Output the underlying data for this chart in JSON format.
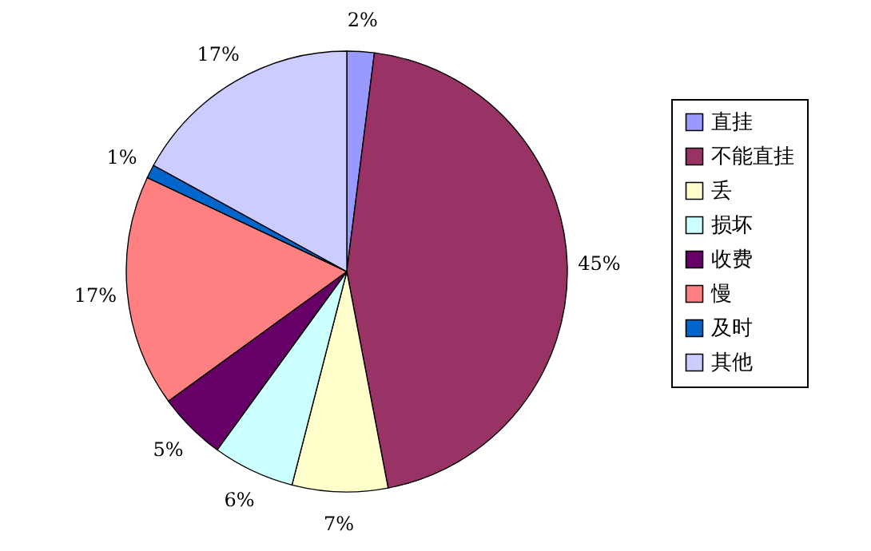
{
  "chart_data": {
    "type": "pie",
    "categories": [
      "直挂",
      "不能直挂",
      "丢",
      "损坏",
      "收费",
      "慢",
      "及时",
      "其他"
    ],
    "values": [
      2,
      45,
      7,
      6,
      5,
      17,
      1,
      17
    ],
    "colors": [
      "#9999ff",
      "#993366",
      "#ffffcc",
      "#ccffff",
      "#660066",
      "#ff8080",
      "#0066cc",
      "#ccccff"
    ],
    "value_labels": [
      "2%",
      "45%",
      "7%",
      "6%",
      "5%",
      "17%",
      "1%",
      "17%"
    ],
    "legend": "right"
  }
}
